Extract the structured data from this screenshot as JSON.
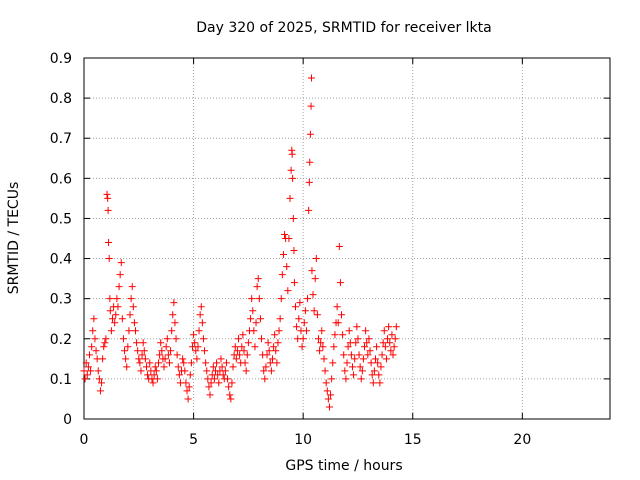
{
  "chart_data": {
    "type": "scatter",
    "title": "Day 320 of 2025, SRMTID for receiver lkta",
    "xlabel": "GPS time / hours",
    "ylabel": "SRMTID / TECUs",
    "xlim": [
      0,
      24
    ],
    "ylim": [
      0,
      0.9
    ],
    "xticks": [
      0,
      5,
      10,
      15,
      20
    ],
    "xtick_labels": [
      "0",
      "5",
      "10",
      "15",
      "20"
    ],
    "yticks": [
      0,
      0.1,
      0.2,
      0.3,
      0.4,
      0.5,
      0.6,
      0.7,
      0.8,
      0.9
    ],
    "ytick_labels": [
      "0",
      "0.1",
      "0.2",
      "0.3",
      "0.4",
      "0.5",
      "0.6",
      "0.7",
      "0.8",
      "0.9"
    ],
    "grid": true,
    "marker": "+",
    "color": "#ff0000",
    "series": [
      {
        "name": "SRMTID",
        "points": [
          [
            0.0,
            0.12
          ],
          [
            0.05,
            0.1
          ],
          [
            0.1,
            0.14
          ],
          [
            0.15,
            0.11
          ],
          [
            0.2,
            0.13
          ],
          [
            0.25,
            0.16
          ],
          [
            0.3,
            0.12
          ],
          [
            0.35,
            0.18
          ],
          [
            0.4,
            0.22
          ],
          [
            0.45,
            0.25
          ],
          [
            0.5,
            0.2
          ],
          [
            0.55,
            0.17
          ],
          [
            0.6,
            0.15
          ],
          [
            0.65,
            0.12
          ],
          [
            0.7,
            0.1
          ],
          [
            0.75,
            0.07
          ],
          [
            0.8,
            0.09
          ],
          [
            0.85,
            0.15
          ],
          [
            0.9,
            0.18
          ],
          [
            0.95,
            0.19
          ],
          [
            1.0,
            0.2
          ],
          [
            1.05,
            0.56
          ],
          [
            1.08,
            0.55
          ],
          [
            1.1,
            0.52
          ],
          [
            1.12,
            0.44
          ],
          [
            1.15,
            0.4
          ],
          [
            1.18,
            0.3
          ],
          [
            1.2,
            0.27
          ],
          [
            1.25,
            0.22
          ],
          [
            1.3,
            0.25
          ],
          [
            1.35,
            0.28
          ],
          [
            1.4,
            0.24
          ],
          [
            1.45,
            0.26
          ],
          [
            1.5,
            0.3
          ],
          [
            1.55,
            0.28
          ],
          [
            1.6,
            0.33
          ],
          [
            1.65,
            0.36
          ],
          [
            1.7,
            0.39
          ],
          [
            1.75,
            0.25
          ],
          [
            1.8,
            0.2
          ],
          [
            1.85,
            0.17
          ],
          [
            1.9,
            0.15
          ],
          [
            1.95,
            0.13
          ],
          [
            2.0,
            0.18
          ],
          [
            2.05,
            0.22
          ],
          [
            2.1,
            0.26
          ],
          [
            2.15,
            0.3
          ],
          [
            2.2,
            0.33
          ],
          [
            2.25,
            0.28
          ],
          [
            2.3,
            0.24
          ],
          [
            2.35,
            0.22
          ],
          [
            2.4,
            0.19
          ],
          [
            2.45,
            0.17
          ],
          [
            2.5,
            0.15
          ],
          [
            2.55,
            0.14
          ],
          [
            2.6,
            0.12
          ],
          [
            2.65,
            0.16
          ],
          [
            2.7,
            0.19
          ],
          [
            2.75,
            0.17
          ],
          [
            2.8,
            0.15
          ],
          [
            2.85,
            0.13
          ],
          [
            2.9,
            0.11
          ],
          [
            2.95,
            0.1
          ],
          [
            3.0,
            0.14
          ],
          [
            3.05,
            0.12
          ],
          [
            3.1,
            0.1
          ],
          [
            3.15,
            0.09
          ],
          [
            3.2,
            0.11
          ],
          [
            3.25,
            0.13
          ],
          [
            3.3,
            0.12
          ],
          [
            3.35,
            0.1
          ],
          [
            3.4,
            0.14
          ],
          [
            3.45,
            0.16
          ],
          [
            3.5,
            0.19
          ],
          [
            3.55,
            0.17
          ],
          [
            3.6,
            0.15
          ],
          [
            3.65,
            0.13
          ],
          [
            3.7,
            0.15
          ],
          [
            3.75,
            0.18
          ],
          [
            3.8,
            0.2
          ],
          [
            3.85,
            0.16
          ],
          [
            3.9,
            0.14
          ],
          [
            3.95,
            0.17
          ],
          [
            4.0,
            0.22
          ],
          [
            4.05,
            0.26
          ],
          [
            4.1,
            0.29
          ],
          [
            4.15,
            0.24
          ],
          [
            4.2,
            0.2
          ],
          [
            4.25,
            0.16
          ],
          [
            4.3,
            0.13
          ],
          [
            4.35,
            0.11
          ],
          [
            4.4,
            0.09
          ],
          [
            4.45,
            0.12
          ],
          [
            4.5,
            0.15
          ],
          [
            4.55,
            0.14
          ],
          [
            4.6,
            0.12
          ],
          [
            4.65,
            0.09
          ],
          [
            4.7,
            0.07
          ],
          [
            4.75,
            0.05
          ],
          [
            4.8,
            0.08
          ],
          [
            4.85,
            0.11
          ],
          [
            4.9,
            0.14
          ],
          [
            4.95,
            0.18
          ],
          [
            5.0,
            0.21
          ],
          [
            5.05,
            0.19
          ],
          [
            5.1,
            0.17
          ],
          [
            5.15,
            0.15
          ],
          [
            5.2,
            0.18
          ],
          [
            5.25,
            0.22
          ],
          [
            5.3,
            0.26
          ],
          [
            5.35,
            0.28
          ],
          [
            5.4,
            0.24
          ],
          [
            5.45,
            0.2
          ],
          [
            5.5,
            0.17
          ],
          [
            5.55,
            0.14
          ],
          [
            5.6,
            0.12
          ],
          [
            5.65,
            0.1
          ],
          [
            5.7,
            0.08
          ],
          [
            5.75,
            0.06
          ],
          [
            5.8,
            0.09
          ],
          [
            5.85,
            0.11
          ],
          [
            5.9,
            0.13
          ],
          [
            5.95,
            0.1
          ],
          [
            6.0,
            0.12
          ],
          [
            6.05,
            0.14
          ],
          [
            6.1,
            0.11
          ],
          [
            6.15,
            0.09
          ],
          [
            6.2,
            0.12
          ],
          [
            6.25,
            0.15
          ],
          [
            6.3,
            0.13
          ],
          [
            6.35,
            0.11
          ],
          [
            6.4,
            0.1
          ],
          [
            6.45,
            0.12
          ],
          [
            6.5,
            0.14
          ],
          [
            6.55,
            0.1
          ],
          [
            6.6,
            0.08
          ],
          [
            6.65,
            0.06
          ],
          [
            6.7,
            0.05
          ],
          [
            6.75,
            0.09
          ],
          [
            6.8,
            0.13
          ],
          [
            6.85,
            0.16
          ],
          [
            6.9,
            0.18
          ],
          [
            6.95,
            0.15
          ],
          [
            7.0,
            0.17
          ],
          [
            7.05,
            0.2
          ],
          [
            7.1,
            0.16
          ],
          [
            7.15,
            0.14
          ],
          [
            7.2,
            0.18
          ],
          [
            7.25,
            0.21
          ],
          [
            7.3,
            0.17
          ],
          [
            7.35,
            0.14
          ],
          [
            7.4,
            0.12
          ],
          [
            7.45,
            0.16
          ],
          [
            7.5,
            0.19
          ],
          [
            7.55,
            0.22
          ],
          [
            7.6,
            0.25
          ],
          [
            7.65,
            0.3
          ],
          [
            7.7,
            0.27
          ],
          [
            7.75,
            0.22
          ],
          [
            7.8,
            0.18
          ],
          [
            7.85,
            0.24
          ],
          [
            7.9,
            0.33
          ],
          [
            7.95,
            0.35
          ],
          [
            8.0,
            0.3
          ],
          [
            8.05,
            0.25
          ],
          [
            8.1,
            0.2
          ],
          [
            8.15,
            0.16
          ],
          [
            8.2,
            0.12
          ],
          [
            8.25,
            0.1
          ],
          [
            8.3,
            0.13
          ],
          [
            8.35,
            0.16
          ],
          [
            8.4,
            0.19
          ],
          [
            8.45,
            0.17
          ],
          [
            8.5,
            0.14
          ],
          [
            8.55,
            0.12
          ],
          [
            8.6,
            0.15
          ],
          [
            8.65,
            0.18
          ],
          [
            8.7,
            0.21
          ],
          [
            8.75,
            0.17
          ],
          [
            8.8,
            0.14
          ],
          [
            8.85,
            0.19
          ],
          [
            8.9,
            0.22
          ],
          [
            8.95,
            0.25
          ],
          [
            9.0,
            0.3
          ],
          [
            9.05,
            0.36
          ],
          [
            9.1,
            0.41
          ],
          [
            9.15,
            0.46
          ],
          [
            9.2,
            0.45
          ],
          [
            9.25,
            0.38
          ],
          [
            9.3,
            0.32
          ],
          [
            9.35,
            0.45
          ],
          [
            9.4,
            0.55
          ],
          [
            9.45,
            0.62
          ],
          [
            9.48,
            0.67
          ],
          [
            9.5,
            0.66
          ],
          [
            9.52,
            0.6
          ],
          [
            9.55,
            0.5
          ],
          [
            9.58,
            0.42
          ],
          [
            9.6,
            0.34
          ],
          [
            9.65,
            0.28
          ],
          [
            9.7,
            0.23
          ],
          [
            9.75,
            0.2
          ],
          [
            9.8,
            0.25
          ],
          [
            9.85,
            0.29
          ],
          [
            9.9,
            0.22
          ],
          [
            9.95,
            0.18
          ],
          [
            10.0,
            0.2
          ],
          [
            10.05,
            0.24
          ],
          [
            10.1,
            0.27
          ],
          [
            10.15,
            0.22
          ],
          [
            10.2,
            0.3
          ],
          [
            10.25,
            0.52
          ],
          [
            10.28,
            0.59
          ],
          [
            10.3,
            0.64
          ],
          [
            10.33,
            0.71
          ],
          [
            10.36,
            0.78
          ],
          [
            10.38,
            0.85
          ],
          [
            10.4,
            0.37
          ],
          [
            10.45,
            0.31
          ],
          [
            10.5,
            0.27
          ],
          [
            10.55,
            0.35
          ],
          [
            10.6,
            0.4
          ],
          [
            10.65,
            0.26
          ],
          [
            10.7,
            0.2
          ],
          [
            10.75,
            0.17
          ],
          [
            10.8,
            0.19
          ],
          [
            10.85,
            0.22
          ],
          [
            10.9,
            0.18
          ],
          [
            10.95,
            0.15
          ],
          [
            11.0,
            0.12
          ],
          [
            11.05,
            0.09
          ],
          [
            11.1,
            0.07
          ],
          [
            11.15,
            0.05
          ],
          [
            11.2,
            0.03
          ],
          [
            11.25,
            0.06
          ],
          [
            11.3,
            0.1
          ],
          [
            11.35,
            0.14
          ],
          [
            11.4,
            0.18
          ],
          [
            11.45,
            0.21
          ],
          [
            11.5,
            0.24
          ],
          [
            11.55,
            0.28
          ],
          [
            11.6,
            0.24
          ],
          [
            11.65,
            0.43
          ],
          [
            11.7,
            0.34
          ],
          [
            11.75,
            0.26
          ],
          [
            11.8,
            0.21
          ],
          [
            11.85,
            0.16
          ],
          [
            11.9,
            0.12
          ],
          [
            11.95,
            0.1
          ],
          [
            12.0,
            0.14
          ],
          [
            12.05,
            0.18
          ],
          [
            12.1,
            0.22
          ],
          [
            12.15,
            0.19
          ],
          [
            12.2,
            0.16
          ],
          [
            12.25,
            0.13
          ],
          [
            12.3,
            0.11
          ],
          [
            12.35,
            0.15
          ],
          [
            12.4,
            0.19
          ],
          [
            12.45,
            0.23
          ],
          [
            12.5,
            0.2
          ],
          [
            12.55,
            0.16
          ],
          [
            12.6,
            0.13
          ],
          [
            12.65,
            0.1
          ],
          [
            12.7,
            0.12
          ],
          [
            12.75,
            0.15
          ],
          [
            12.8,
            0.18
          ],
          [
            12.85,
            0.22
          ],
          [
            12.9,
            0.19
          ],
          [
            12.95,
            0.16
          ],
          [
            13.0,
            0.2
          ],
          [
            13.05,
            0.17
          ],
          [
            13.1,
            0.14
          ],
          [
            13.15,
            0.11
          ],
          [
            13.2,
            0.09
          ],
          [
            13.25,
            0.12
          ],
          [
            13.3,
            0.15
          ],
          [
            13.35,
            0.18
          ],
          [
            13.4,
            0.14
          ],
          [
            13.45,
            0.11
          ],
          [
            13.5,
            0.09
          ],
          [
            13.55,
            0.13
          ],
          [
            13.6,
            0.16
          ],
          [
            13.65,
            0.19
          ],
          [
            13.7,
            0.22
          ],
          [
            13.75,
            0.18
          ],
          [
            13.8,
            0.15
          ],
          [
            13.85,
            0.2
          ],
          [
            13.9,
            0.23
          ],
          [
            13.95,
            0.19
          ],
          [
            14.0,
            0.17
          ],
          [
            14.05,
            0.21
          ],
          [
            14.1,
            0.16
          ],
          [
            14.15,
            0.18
          ],
          [
            14.2,
            0.2
          ],
          [
            14.25,
            0.23
          ]
        ]
      }
    ]
  }
}
